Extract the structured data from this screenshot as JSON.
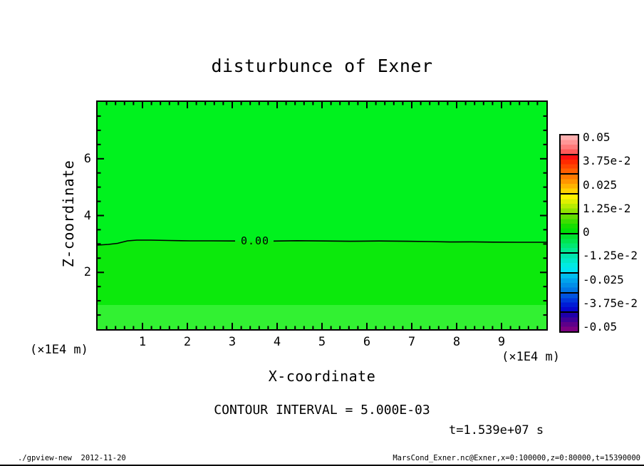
{
  "title": "disturbunce of Exner",
  "axes": {
    "x": {
      "label": "X-coordinate",
      "unit": "(×1E4 m)",
      "ticks": [
        "1",
        "2",
        "3",
        "4",
        "5",
        "6",
        "7",
        "8",
        "9"
      ],
      "range": [
        0,
        10
      ]
    },
    "y": {
      "label": "Z-coordinate",
      "unit": "(×1E4 m)",
      "ticks": [
        "6",
        "4",
        "2"
      ],
      "range": [
        0,
        8
      ]
    }
  },
  "plot": {
    "contour_label": "0.00",
    "region_colors": {
      "upper": "#00F21E",
      "middle": "#0CE90C",
      "bottom_band": "#32F132"
    }
  },
  "colorbar": {
    "labels": [
      "0.05",
      "3.75e-2",
      "0.025",
      "1.25e-2",
      "0",
      "-1.25e-2",
      "-0.025",
      "-3.75e-2",
      "-0.05"
    ],
    "segments": [
      [
        "#FFAFAF",
        "#FF9696",
        "#FF7A7A",
        "#FF5A5A"
      ],
      [
        "#FF1010",
        "#FF2A00",
        "#FF4400",
        "#FF5E00"
      ],
      [
        "#FF7A00",
        "#FF9600",
        "#FFB400",
        "#FFD200"
      ],
      [
        "#FFF200",
        "#DFF000",
        "#B8EC00",
        "#90E400"
      ],
      [
        "#62DE00",
        "#3CDE00",
        "#16DE00",
        "#00E006"
      ],
      [
        "#00E22E",
        "#00E54E",
        "#00E870",
        "#00EA92"
      ],
      [
        "#00E6AE",
        "#00E8C8",
        "#00EAE2",
        "#00E4F2"
      ],
      [
        "#00BEEE",
        "#00A4EC",
        "#008EE8",
        "#0076E4"
      ],
      [
        "#0054E0",
        "#0038DC",
        "#001CD6",
        "#0606CE"
      ],
      [
        "#1E00AA",
        "#3E0098",
        "#5E008A",
        "#7C0082"
      ]
    ]
  },
  "annotations": {
    "contour_interval": "CONTOUR INTERVAL = 5.000E-03",
    "time": "t=1.539e+07 s"
  },
  "footer": {
    "left": "./gpview-new  2012-11-20",
    "right": "MarsCond_Exner.nc@Exner,x=0:100000,z=0:80000,t=15390000"
  },
  "chart_data": {
    "type": "heatmap",
    "title": "disturbunce of Exner",
    "xlabel": "X-coordinate (×1E4 m)",
    "ylabel": "Z-coordinate (×1E4 m)",
    "xlim": [
      0,
      10
    ],
    "ylim": [
      0,
      8
    ],
    "x_ticks": [
      1,
      2,
      3,
      4,
      5,
      6,
      7,
      8,
      9
    ],
    "y_ticks": [
      2,
      4,
      6
    ],
    "grid": false,
    "legend_position": "colorbar-right",
    "contour_interval": 0.005,
    "colorbar_tick_values": [
      0.05,
      0.0375,
      0.025,
      0.0125,
      0,
      -0.0125,
      -0.025,
      -0.0375,
      -0.05
    ],
    "zero_contour": {
      "level": 0.0,
      "x": [
        0,
        0.3,
        0.7,
        1,
        2,
        3,
        4,
        5,
        6,
        7,
        8,
        9,
        10
      ],
      "z": [
        2.96,
        3.0,
        3.13,
        3.13,
        3.12,
        3.12,
        3.1,
        3.11,
        3.08,
        3.05,
        3.06,
        3.03,
        3.02
      ]
    },
    "field_regions": [
      {
        "region": "above zero contour (z > ~3.1)",
        "value_range": "0 to -1.25e-2",
        "color": "#00F21E"
      },
      {
        "region": "below zero contour (z ~0.9 to ~3.1)",
        "value_range": "0 to +1.25e-2",
        "color": "#0CE90C"
      },
      {
        "region": "bottom band (z < ~0.9)",
        "value_range": "slightly larger positive",
        "color": "#32F132"
      }
    ],
    "time": "t=1.539e+07 s",
    "source_text": "MarsCond_Exner.nc@Exner,x=0:100000,z=0:80000,t=15390000"
  }
}
